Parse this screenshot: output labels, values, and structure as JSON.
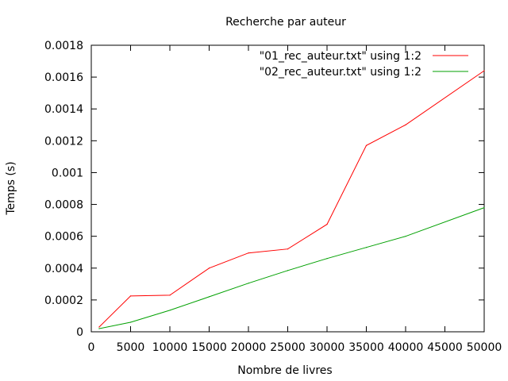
{
  "chart_data": {
    "type": "line",
    "title": "Recherche par auteur",
    "xlabel": "Nombre de livres",
    "ylabel": "Temps (s)",
    "xlim": [
      0,
      50000
    ],
    "ylim": [
      0,
      0.0018
    ],
    "grid": false,
    "legend_position": "top-right",
    "x_ticks": [
      "0",
      "5000",
      "10000",
      "15000",
      "20000",
      "25000",
      "30000",
      "35000",
      "40000",
      "45000",
      "50000"
    ],
    "y_ticks": [
      "0",
      "0.0002",
      "0.0004",
      "0.0006",
      "0.0008",
      "0.001",
      "0.0012",
      "0.0014",
      "0.0016",
      "0.0018"
    ],
    "series": [
      {
        "name": "\"01_rec_auteur.txt\" using 1:2",
        "color": "#ff0000",
        "x": [
          1000,
          5000,
          10000,
          15000,
          20000,
          25000,
          30000,
          35000,
          40000,
          50000
        ],
        "y": [
          3e-05,
          0.000225,
          0.00023,
          0.0004,
          0.000495,
          0.00052,
          0.000675,
          0.00117,
          0.0013,
          0.00164
        ]
      },
      {
        "name": "\"02_rec_auteur.txt\" using 1:2",
        "color": "#00a000",
        "x": [
          1000,
          5000,
          10000,
          15000,
          20000,
          25000,
          30000,
          35000,
          40000,
          50000
        ],
        "y": [
          2e-05,
          6e-05,
          0.000135,
          0.00022,
          0.000305,
          0.000385,
          0.00046,
          0.00053,
          0.0006,
          0.00078
        ]
      }
    ]
  }
}
